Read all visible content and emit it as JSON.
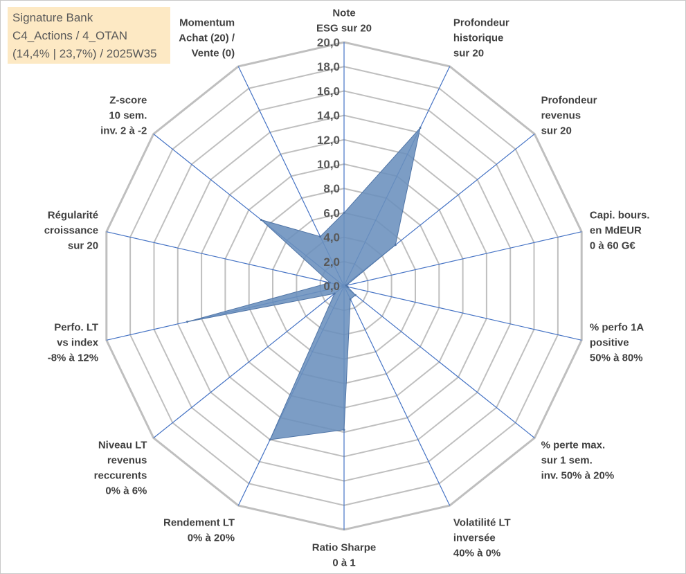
{
  "title_box": {
    "line1": "Signature Bank",
    "line2": "C4_Actions / 4_OTAN",
    "line3": "(14,4% | 23,7%) / 2025W35",
    "background": "#fde9c4"
  },
  "chart_data": {
    "type": "radar",
    "r_range": [
      0,
      20
    ],
    "tick_values": [
      0,
      2,
      4,
      6,
      8,
      10,
      12,
      14,
      16,
      18,
      20
    ],
    "tick_labels": [
      "0,0",
      "2,0",
      "4,0",
      "6,0",
      "8,0",
      "10,0",
      "12,0",
      "14,0",
      "16,0",
      "18,0",
      "20,0"
    ],
    "grid": true,
    "legend": "none",
    "axes": [
      {
        "label": [
          "Note",
          "ESG sur 20"
        ]
      },
      {
        "label": [
          "Profondeur",
          "historique",
          "sur 20"
        ]
      },
      {
        "label": [
          "Profondeur",
          "revenus",
          "sur 20"
        ]
      },
      {
        "label": [
          "Capi. bours.",
          "en MdEUR",
          "0 à 60 G€"
        ]
      },
      {
        "label": [
          "% perfo 1A",
          "positive",
          "50% à 80%"
        ]
      },
      {
        "label": [
          "% perte max.",
          "sur 1 sem.",
          "inv. 50% à 20%"
        ]
      },
      {
        "label": [
          "Volatilité LT",
          "inversée",
          "40% à 0%"
        ]
      },
      {
        "label": [
          "Ratio Sharpe",
          "0 à 1"
        ]
      },
      {
        "label": [
          "Rendement LT",
          "0% à 20%"
        ]
      },
      {
        "label": [
          "Niveau LT",
          "revenus",
          "reccurents",
          "0% à 6%"
        ]
      },
      {
        "label": [
          "Perfo. LT",
          "vs index",
          "-8% à 12%"
        ]
      },
      {
        "label": [
          "Régularité",
          "croissance",
          "sur 20"
        ]
      },
      {
        "label": [
          "Z-score",
          "10 sem.",
          "inv. 2 à -2"
        ]
      },
      {
        "label": [
          "Momentum",
          "Achat (20) /",
          "Vente (0)"
        ]
      }
    ],
    "series": [
      {
        "values": [
          6.0,
          14.4,
          5.4,
          0.2,
          0.3,
          1.2,
          1.2,
          11.8,
          14.0,
          1.0,
          13.2,
          1.2,
          8.7,
          4.5
        ],
        "fill": "#6a8fbd",
        "stroke": "#4f74a6"
      }
    ],
    "colors": {
      "grid": "#bfbfbf",
      "axis": "#4472c4"
    }
  }
}
